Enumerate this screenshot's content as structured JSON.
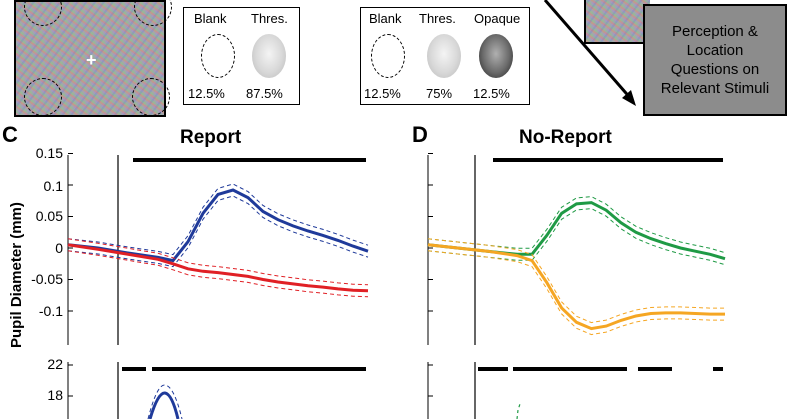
{
  "top": {
    "legend_report": {
      "labels": [
        "Blank",
        "Thres."
      ],
      "percents": [
        "12.5%",
        "87.5%"
      ]
    },
    "legend_noreport": {
      "labels": [
        "Blank",
        "Thres.",
        "Opaque"
      ],
      "percents": [
        "12.5%",
        "75%",
        "12.5%"
      ]
    },
    "questions_box": "Perception & Location Questions on Relevant Stimuli"
  },
  "chart_data": [
    {
      "panel": "C",
      "title": "Report",
      "type": "line",
      "ylabel": "Pupil Diameter (mm)",
      "ylim": [
        -0.15,
        0.15
      ],
      "yticks": [
        "0.15",
        "0.1",
        "0.05",
        "0",
        "-0.05",
        "-0.1"
      ],
      "x": [
        0,
        0.1,
        0.2,
        0.3,
        0.35,
        0.4,
        0.45,
        0.5,
        0.55,
        0.6,
        0.65,
        0.7,
        0.75,
        0.8,
        0.85,
        0.9,
        0.95,
        1.0
      ],
      "series": [
        {
          "name": "Blue",
          "color": "#1f3a9a",
          "values": [
            0.005,
            0.0,
            -0.008,
            -0.015,
            -0.02,
            0.01,
            0.055,
            0.085,
            0.092,
            0.08,
            0.058,
            0.045,
            0.035,
            0.027,
            0.02,
            0.012,
            0.003,
            -0.005
          ]
        },
        {
          "name": "Red",
          "color": "#e02025",
          "values": [
            0.005,
            -0.002,
            -0.01,
            -0.018,
            -0.025,
            -0.033,
            -0.037,
            -0.039,
            -0.042,
            -0.045,
            -0.05,
            -0.054,
            -0.057,
            -0.06,
            -0.062,
            -0.065,
            -0.067,
            -0.068
          ]
        }
      ]
    },
    {
      "panel": "D",
      "title": "No-Report",
      "type": "line",
      "ylim": [
        -0.15,
        0.15
      ],
      "x": [
        0,
        0.1,
        0.2,
        0.3,
        0.35,
        0.4,
        0.45,
        0.5,
        0.55,
        0.6,
        0.65,
        0.7,
        0.75,
        0.8,
        0.85,
        0.9,
        0.95,
        1.0
      ],
      "series": [
        {
          "name": "Green",
          "color": "#1f9a45",
          "values": [
            0.005,
            0.0,
            -0.005,
            -0.01,
            -0.01,
            0.02,
            0.055,
            0.07,
            0.072,
            0.06,
            0.04,
            0.025,
            0.015,
            0.007,
            0.0,
            -0.005,
            -0.01,
            -0.017
          ]
        },
        {
          "name": "Orange",
          "color": "#f5a623",
          "values": [
            0.005,
            0.0,
            -0.005,
            -0.012,
            -0.02,
            -0.055,
            -0.095,
            -0.118,
            -0.128,
            -0.124,
            -0.115,
            -0.108,
            -0.104,
            -0.103,
            -0.103,
            -0.104,
            -0.105,
            -0.105
          ]
        }
      ]
    }
  ],
  "bottom": {
    "yticks": [
      "22",
      "18"
    ]
  }
}
